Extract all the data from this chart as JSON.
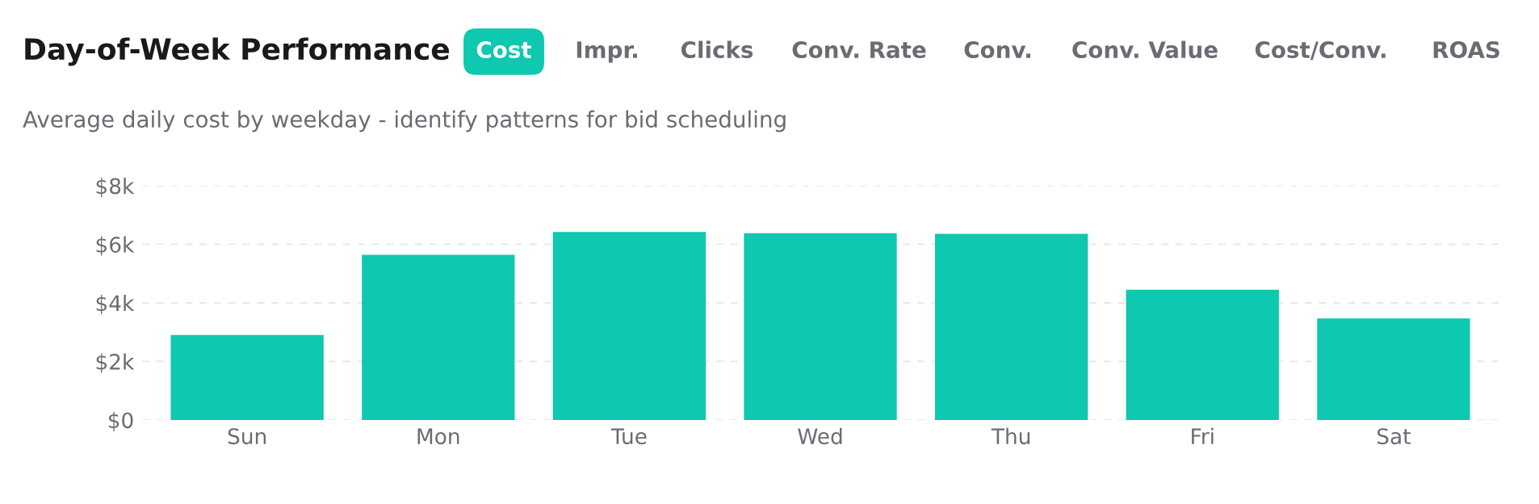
{
  "chart_data": {
    "type": "bar",
    "title": "Day-of-Week Performance",
    "subtitle": "Average daily cost by weekday - identify patterns for bid scheduling",
    "annotations": [
      "Cost",
      "Impr.",
      "Clicks",
      "Conv. Rate",
      "Conv.",
      "Conv. Value",
      "Cost/Conv.",
      "ROAS"
    ],
    "categories": [
      "Sun",
      "Mon",
      "Tue",
      "Wed",
      "Thu",
      "Fri",
      "Sat"
    ],
    "values": [
      2900,
      5640,
      6420,
      6380,
      6360,
      4450,
      3470
    ],
    "color": "#0ec8b0",
    "ylim": [
      0,
      8000
    ],
    "yticks": [
      {
        "value": 0,
        "label": "$0"
      },
      {
        "value": 2000,
        "label": "$2k"
      },
      {
        "value": 4000,
        "label": "$4k"
      },
      {
        "value": 6000,
        "label": "$6k"
      },
      {
        "value": 8000,
        "label": "$8k"
      }
    ],
    "grid": "y"
  }
}
